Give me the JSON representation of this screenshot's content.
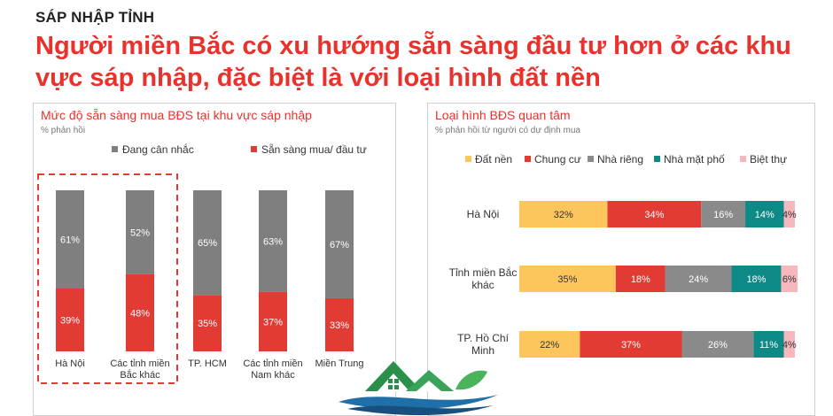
{
  "header": {
    "kicker": "SÁP NHẬP TỈNH",
    "headline": "Người miền Bắc có xu hướng sẵn sàng đầu tư hơn ở các khu vực sáp nhập, đặc biệt là với loại hình đất nền"
  },
  "colors": {
    "accent": "#e8322b",
    "dark_gray": "#7f7f7f",
    "yellow": "#fcc65c",
    "red": "#e23b34",
    "gray": "#8a8a8a",
    "teal": "#0e8a86",
    "pink": "#f6b8bd"
  },
  "chart_data": [
    {
      "type": "bar",
      "stacked": true,
      "orientation": "vertical",
      "title": "Mức độ sẵn sàng mua BĐS tại khu vực sáp nhập",
      "subtitle": "% phản hồi",
      "categories": [
        "Hà Nội",
        "Các tỉnh miền Bắc khác",
        "TP. HCM",
        "Các tỉnh miền Nam khác",
        "Miền Trung"
      ],
      "series": [
        {
          "name": "Sẵn sàng mua/ đầu tư",
          "color": "#e23b34",
          "values": [
            39,
            48,
            35,
            37,
            33
          ]
        },
        {
          "name": "Đang cân nhắc",
          "color": "#7f7f7f",
          "values": [
            61,
            52,
            65,
            63,
            67
          ]
        }
      ],
      "ylim": [
        0,
        100
      ],
      "legend": "top",
      "grid": false,
      "highlighted_categories": [
        "Hà Nội",
        "Các tỉnh miền Bắc khác"
      ]
    },
    {
      "type": "bar",
      "stacked": true,
      "orientation": "horizontal",
      "title": "Loại hình BĐS quan tâm",
      "subtitle": "% phản hồi từ người có dự định mua",
      "categories": [
        "Hà Nội",
        "Tỉnh miền Bắc khác",
        "TP. Hồ Chí Minh"
      ],
      "series": [
        {
          "name": "Đất nền",
          "color": "#fcc65c",
          "values": [
            32,
            35,
            22
          ]
        },
        {
          "name": "Chung cư",
          "color": "#e23b34",
          "values": [
            34,
            18,
            37
          ]
        },
        {
          "name": "Nhà riêng",
          "color": "#8a8a8a",
          "values": [
            16,
            24,
            26
          ]
        },
        {
          "name": "Nhà mặt phố",
          "color": "#0e8a86",
          "values": [
            14,
            18,
            11
          ]
        },
        {
          "name": "Biệt thự",
          "color": "#f6b8bd",
          "values": [
            4,
            6,
            4
          ]
        }
      ],
      "xlim": [
        0,
        100
      ],
      "legend": "top",
      "grid": false
    }
  ]
}
